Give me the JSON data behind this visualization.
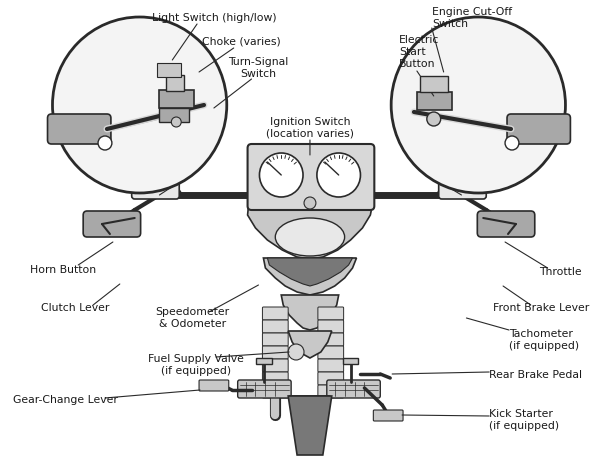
{
  "fig_w": 6.12,
  "fig_h": 4.72,
  "dpi": 100,
  "bg": "#ffffff",
  "lc": "#2a2a2a",
  "gray1": "#c8c8c8",
  "gray2": "#a8a8a8",
  "gray3": "#787878",
  "gray4": "#d8d8d8",
  "gray5": "#e8e8e8",
  "tc": "#1a1a1a",
  "fs": 7.8,
  "labels": {
    "light_switch": "Light Switch (high/low)",
    "choke": "Choke (varies)",
    "turn_signal": "Turn-Signal\nSwitch",
    "ignition": "Ignition Switch\n(location varies)",
    "engine_cutoff": "Engine Cut-Off\nSwitch",
    "electric_start": "Electric\nStart\nButton",
    "horn": "Horn Button",
    "clutch": "Clutch Lever",
    "speedo": "Speedometer\n& Odometer",
    "throttle": "Throttle",
    "front_brake": "Front Brake Lever",
    "tacho": "Tachometer\n(if equipped)",
    "fuel_valve": "Fuel Supply Valve\n(if equipped)",
    "rear_brake": "Rear Brake Pedal",
    "gear_change": "Gear-Change Lever",
    "kick_starter": "Kick Starter\n(if equipped)"
  }
}
